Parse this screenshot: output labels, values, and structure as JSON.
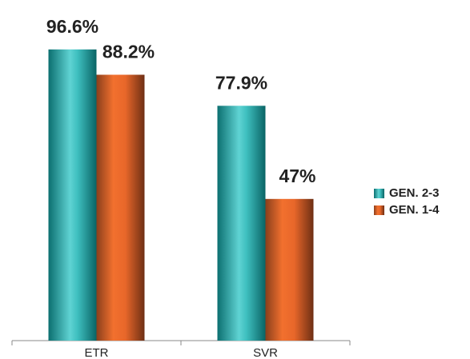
{
  "chart_data": {
    "type": "bar",
    "categories": [
      "ETR",
      "SVR"
    ],
    "series": [
      {
        "name": "GEN. 2-3",
        "color": "#2bb3b3",
        "values": [
          96.6,
          77.9
        ],
        "value_labels": [
          "96.6%",
          "77.9%"
        ]
      },
      {
        "name": "GEN. 1-4",
        "color": "#e8672a",
        "values": [
          88.2,
          47
        ],
        "value_labels": [
          "88.2%",
          "47%"
        ]
      }
    ],
    "ylim": [
      0,
      100
    ]
  }
}
